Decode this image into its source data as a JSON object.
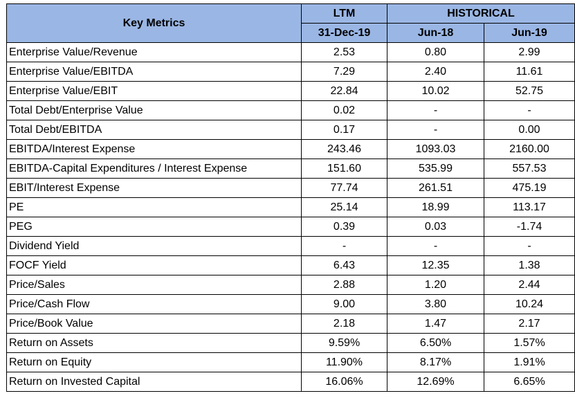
{
  "table": {
    "header": {
      "key_metrics": "Key Metrics",
      "ltm": "LTM",
      "historical": "HISTORICAL",
      "ltm_date": "31-Dec-19",
      "hist_date_1": "Jun-18",
      "hist_date_2": "Jun-19"
    },
    "rows": [
      {
        "metric": "Enterprise Value/Revenue",
        "ltm": "2.53",
        "jun18": "0.80",
        "jun19": "2.99"
      },
      {
        "metric": "Enterprise Value/EBITDA",
        "ltm": "7.29",
        "jun18": "2.40",
        "jun19": "11.61"
      },
      {
        "metric": "Enterprise Value/EBIT",
        "ltm": "22.84",
        "jun18": "10.02",
        "jun19": "52.75"
      },
      {
        "metric": "Total Debt/Enterprise Value",
        "ltm": "0.02",
        "jun18": "-",
        "jun19": "-"
      },
      {
        "metric": "Total Debt/EBITDA",
        "ltm": "0.17",
        "jun18": "-",
        "jun19": "0.00"
      },
      {
        "metric": "EBITDA/Interest Expense",
        "ltm": "243.46",
        "jun18": "1093.03",
        "jun19": "2160.00"
      },
      {
        "metric": "EBITDA-Capital Expenditures / Interest Expense",
        "ltm": "151.60",
        "jun18": "535.99",
        "jun19": "557.53"
      },
      {
        "metric": "EBIT/Interest Expense",
        "ltm": "77.74",
        "jun18": "261.51",
        "jun19": "475.19"
      },
      {
        "metric": "PE",
        "ltm": "25.14",
        "jun18": "18.99",
        "jun19": "113.17"
      },
      {
        "metric": "PEG",
        "ltm": "0.39",
        "jun18": "0.03",
        "jun19": "-1.74"
      },
      {
        "metric": "Dividend Yield",
        "ltm": "-",
        "jun18": "-",
        "jun19": "-"
      },
      {
        "metric": "FOCF Yield",
        "ltm": "6.43",
        "jun18": "12.35",
        "jun19": "1.38"
      },
      {
        "metric": "Price/Sales",
        "ltm": "2.88",
        "jun18": "1.20",
        "jun19": "2.44"
      },
      {
        "metric": "Price/Cash Flow",
        "ltm": "9.00",
        "jun18": "3.80",
        "jun19": "10.24"
      },
      {
        "metric": "Price/Book Value",
        "ltm": "2.18",
        "jun18": "1.47",
        "jun19": "2.17"
      },
      {
        "metric": "Return on Assets",
        "ltm": "9.59%",
        "jun18": "6.50%",
        "jun19": "1.57%"
      },
      {
        "metric": "Return on Equity",
        "ltm": "11.90%",
        "jun18": "8.17%",
        "jun19": "1.91%"
      },
      {
        "metric": "Return on Invested Capital",
        "ltm": "16.06%",
        "jun18": "12.69%",
        "jun19": "6.65%"
      }
    ]
  },
  "colors": {
    "header_bg": "#9ab6e4",
    "border": "#000000"
  }
}
